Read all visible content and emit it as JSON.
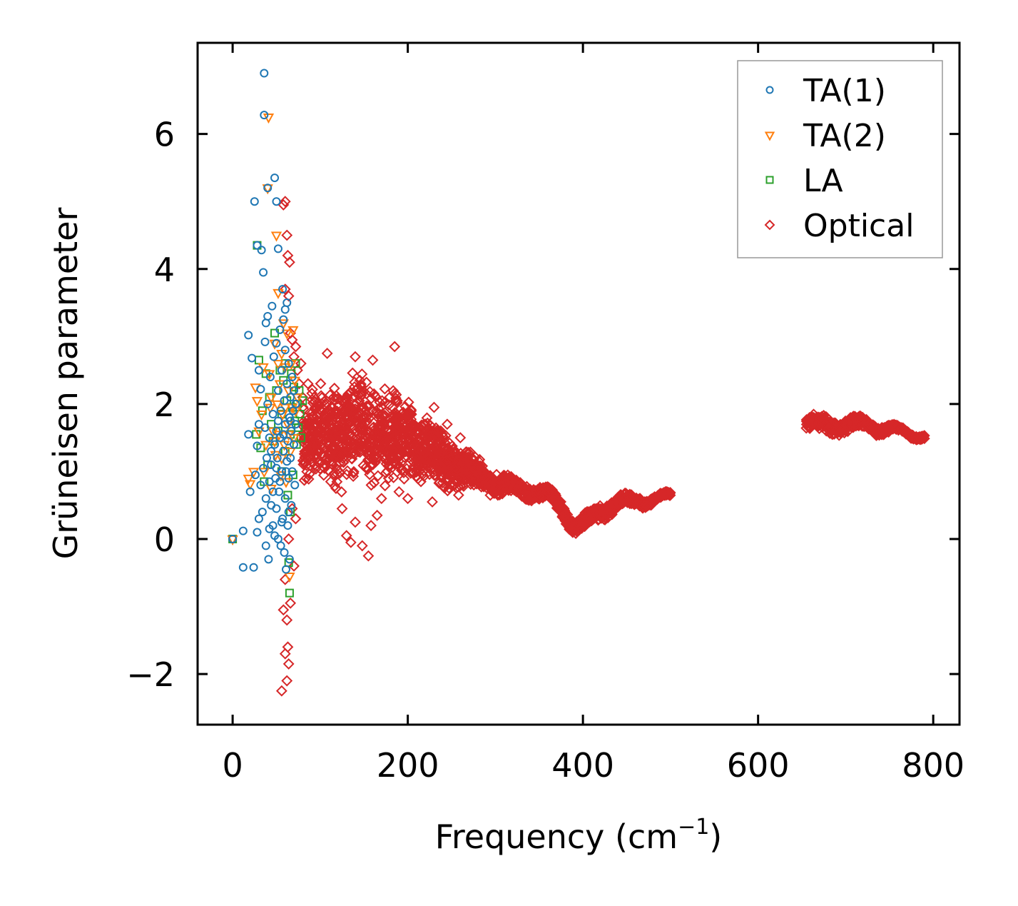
{
  "chart_data": {
    "type": "scatter",
    "title": "",
    "xlabel": "Frequency (cm",
    "xlabel_sup": "−1",
    "xlabel_end": ")",
    "ylabel": "Grüneisen parameter",
    "xlim": [
      -40,
      830
    ],
    "ylim": [
      -2.75,
      7.35
    ],
    "xticks": [
      0,
      200,
      400,
      600,
      800
    ],
    "xtick_labels": [
      "0",
      "200",
      "400",
      "600",
      "800"
    ],
    "yticks": [
      -2,
      0,
      2,
      4,
      6
    ],
    "ytick_labels": [
      "−2",
      "0",
      "2",
      "4",
      "6"
    ],
    "grid": false,
    "legend_position": "top-right",
    "series": [
      {
        "name": "TA(1)",
        "marker": "circle",
        "color": "#1f77b4",
        "points": [
          [
            0,
            0.0
          ],
          [
            12,
            0.12
          ],
          [
            12,
            -0.42
          ],
          [
            18,
            1.55
          ],
          [
            18,
            3.02
          ],
          [
            20,
            0.7
          ],
          [
            22,
            2.68
          ],
          [
            24,
            -0.42
          ],
          [
            25,
            5.0
          ],
          [
            26,
            0.95
          ],
          [
            28,
            0.1
          ],
          [
            28,
            1.38
          ],
          [
            28,
            4.35
          ],
          [
            30,
            0.3
          ],
          [
            30,
            1.7
          ],
          [
            30,
            2.5
          ],
          [
            32,
            0.8
          ],
          [
            32,
            2.22
          ],
          [
            33,
            4.28
          ],
          [
            34,
            0.4
          ],
          [
            35,
            1.05
          ],
          [
            35,
            3.95
          ],
          [
            36,
            6.9
          ],
          [
            36,
            6.28
          ],
          [
            37,
            1.65
          ],
          [
            37,
            2.92
          ],
          [
            38,
            -0.1
          ],
          [
            38,
            0.6
          ],
          [
            38,
            3.2
          ],
          [
            39,
            1.2
          ],
          [
            40,
            2.0
          ],
          [
            40,
            3.3
          ],
          [
            40,
            5.2
          ],
          [
            41,
            -0.3
          ],
          [
            42,
            0.15
          ],
          [
            42,
            0.85
          ],
          [
            42,
            1.5
          ],
          [
            43,
            2.4
          ],
          [
            44,
            0.5
          ],
          [
            44,
            1.1
          ],
          [
            45,
            3.45
          ],
          [
            46,
            0.2
          ],
          [
            46,
            1.85
          ],
          [
            47,
            2.7
          ],
          [
            48,
            0.05
          ],
          [
            48,
            1.4
          ],
          [
            48,
            5.35
          ],
          [
            49,
            0.9
          ],
          [
            50,
            0.45
          ],
          [
            50,
            1.6
          ],
          [
            50,
            2.9
          ],
          [
            50,
            5.0
          ],
          [
            51,
            1.2
          ],
          [
            52,
            0.0
          ],
          [
            52,
            2.2
          ],
          [
            52,
            4.3
          ],
          [
            53,
            0.7
          ],
          [
            54,
            1.5
          ],
          [
            54,
            3.1
          ],
          [
            55,
            -0.1
          ],
          [
            55,
            1.9
          ],
          [
            56,
            1.0
          ],
          [
            56,
            2.5
          ],
          [
            57,
            0.3
          ],
          [
            57,
            3.7
          ],
          [
            58,
            1.3
          ],
          [
            58,
            3.25
          ],
          [
            59,
            -0.2
          ],
          [
            59,
            2.05
          ],
          [
            60,
            0.6
          ],
          [
            60,
            1.7
          ],
          [
            60,
            3.4
          ],
          [
            61,
            -0.45
          ],
          [
            61,
            1.0
          ],
          [
            62,
            2.3
          ],
          [
            62,
            3.5
          ],
          [
            63,
            0.2
          ],
          [
            63,
            1.45
          ],
          [
            64,
            2.6
          ],
          [
            64,
            0.9
          ],
          [
            65,
            1.8
          ],
          [
            65,
            -0.3
          ],
          [
            66,
            1.2
          ],
          [
            66,
            2.1
          ],
          [
            67,
            0.5
          ],
          [
            67,
            1.6
          ],
          [
            68,
            2.4
          ],
          [
            68,
            1.0
          ],
          [
            69,
            1.9
          ],
          [
            70,
            1.4
          ],
          [
            70,
            2.2
          ],
          [
            71,
            0.8
          ],
          [
            72,
            1.7
          ],
          [
            72,
            2.0
          ],
          [
            44,
            1.3
          ],
          [
            46,
            0.7
          ],
          [
            50,
            1.05
          ],
          [
            54,
            0.85
          ],
          [
            58,
            1.55
          ],
          [
            62,
            1.15
          ],
          [
            66,
            1.75
          ],
          [
            64,
            0.4
          ],
          [
            56,
            0.25
          ],
          [
            60,
            2.8
          ],
          [
            52,
            1.75
          ]
        ]
      },
      {
        "name": "TA(2)",
        "marker": "triangle",
        "color": "#ff7f0e",
        "points": [
          [
            0,
            0.0
          ],
          [
            18,
            0.9
          ],
          [
            20,
            0.82
          ],
          [
            24,
            1.0
          ],
          [
            26,
            2.25
          ],
          [
            28,
            2.05
          ],
          [
            30,
            1.6
          ],
          [
            33,
            1.85
          ],
          [
            35,
            2.55
          ],
          [
            36,
            1.0
          ],
          [
            38,
            1.4
          ],
          [
            40,
            5.2
          ],
          [
            41,
            6.25
          ],
          [
            42,
            2.45
          ],
          [
            43,
            1.95
          ],
          [
            44,
            0.75
          ],
          [
            46,
            1.6
          ],
          [
            48,
            2.9
          ],
          [
            49,
            1.25
          ],
          [
            50,
            4.5
          ],
          [
            51,
            2.0
          ],
          [
            52,
            3.65
          ],
          [
            53,
            1.55
          ],
          [
            54,
            2.3
          ],
          [
            55,
            0.95
          ],
          [
            56,
            2.75
          ],
          [
            57,
            1.85
          ],
          [
            58,
            3.2
          ],
          [
            59,
            1.4
          ],
          [
            60,
            2.55
          ],
          [
            61,
            0.85
          ],
          [
            62,
            3.05
          ],
          [
            63,
            1.7
          ],
          [
            64,
            2.2
          ],
          [
            65,
            -0.55
          ],
          [
            66,
            1.3
          ],
          [
            67,
            2.6
          ],
          [
            68,
            1.95
          ],
          [
            69,
            3.1
          ],
          [
            70,
            1.5
          ],
          [
            71,
            2.35
          ],
          [
            72,
            1.9
          ],
          [
            74,
            2.1
          ],
          [
            44,
            2.1
          ],
          [
            48,
            1.45
          ],
          [
            52,
            2.6
          ],
          [
            56,
            1.2
          ],
          [
            60,
            1.95
          ],
          [
            64,
            1.55
          ]
        ]
      },
      {
        "name": "LA",
        "marker": "square",
        "color": "#2ca02c",
        "points": [
          [
            0,
            0.0
          ],
          [
            27,
            1.55
          ],
          [
            28,
            4.35
          ],
          [
            30,
            2.65
          ],
          [
            32,
            1.35
          ],
          [
            34,
            1.9
          ],
          [
            36,
            0.85
          ],
          [
            38,
            2.45
          ],
          [
            40,
            1.1
          ],
          [
            42,
            2.1
          ],
          [
            44,
            1.7
          ],
          [
            46,
            1.45
          ],
          [
            48,
            3.05
          ],
          [
            50,
            2.2
          ],
          [
            52,
            1.6
          ],
          [
            54,
            2.5
          ],
          [
            56,
            1.85
          ],
          [
            58,
            2.35
          ],
          [
            60,
            1.3
          ],
          [
            62,
            2.05
          ],
          [
            63,
            0.65
          ],
          [
            64,
            -0.35
          ],
          [
            65,
            -0.8
          ],
          [
            66,
            1.55
          ],
          [
            67,
            2.45
          ],
          [
            68,
            1.95
          ],
          [
            69,
            0.95
          ],
          [
            70,
            2.25
          ],
          [
            71,
            1.75
          ],
          [
            72,
            2.6
          ],
          [
            73,
            1.4
          ],
          [
            74,
            2.0
          ],
          [
            75,
            1.65
          ],
          [
            76,
            2.2
          ],
          [
            77,
            1.85
          ],
          [
            78,
            1.5
          ],
          [
            80,
            2.05
          ],
          [
            56,
            1.0
          ],
          [
            60,
            2.6
          ],
          [
            66,
            0.4
          ]
        ]
      },
      {
        "name": "Optical",
        "marker": "diamond",
        "color": "#d62728",
        "points": [
          [
            56,
            -2.25
          ],
          [
            62,
            -2.1
          ],
          [
            60,
            -1.7
          ],
          [
            63,
            -1.6
          ],
          [
            64,
            -1.85
          ],
          [
            62,
            -1.2
          ],
          [
            58,
            -1.05
          ],
          [
            66,
            -0.95
          ],
          [
            70,
            -0.4
          ],
          [
            60,
            -0.6
          ],
          [
            64,
            0.0
          ],
          [
            68,
            0.45
          ],
          [
            72,
            0.3
          ],
          [
            58,
            4.95
          ],
          [
            60,
            5.0
          ],
          [
            62,
            4.5
          ],
          [
            63,
            4.2
          ],
          [
            65,
            4.1
          ],
          [
            60,
            3.7
          ],
          [
            64,
            3.6
          ],
          [
            66,
            3.05
          ],
          [
            68,
            2.95
          ],
          [
            70,
            2.7
          ],
          [
            72,
            2.85
          ],
          [
            74,
            2.5
          ],
          [
            76,
            2.3
          ],
          [
            78,
            2.6
          ],
          [
            80,
            2.1
          ],
          [
            82,
            1.5
          ],
          [
            84,
            0.9
          ],
          [
            86,
            2.3
          ],
          [
            88,
            1.2
          ],
          [
            108,
            2.75
          ],
          [
            112,
            0.85
          ],
          [
            118,
            0.75
          ],
          [
            125,
            0.45
          ],
          [
            130,
            0.05
          ],
          [
            135,
            -0.05
          ],
          [
            140,
            0.25
          ],
          [
            148,
            -0.1
          ],
          [
            155,
            -0.25
          ],
          [
            158,
            0.2
          ],
          [
            165,
            0.35
          ],
          [
            170,
            0.6
          ],
          [
            178,
            0.9
          ],
          [
            185,
            2.85
          ],
          [
            190,
            0.7
          ],
          [
            200,
            0.6
          ],
          [
            215,
            0.85
          ],
          [
            228,
            0.55
          ],
          [
            245,
            0.9
          ],
          [
            258,
            0.65
          ],
          [
            265,
            1.2
          ],
          [
            140,
            2.7
          ],
          [
            160,
            2.65
          ],
          [
            230,
            1.95
          ],
          [
            245,
            1.7
          ],
          [
            260,
            1.5
          ]
        ],
        "band_center": [
          [
            80,
            1.5
          ],
          [
            100,
            1.6
          ],
          [
            120,
            1.55
          ],
          [
            140,
            1.6
          ],
          [
            160,
            1.6
          ],
          [
            180,
            1.5
          ],
          [
            200,
            1.45
          ],
          [
            220,
            1.35
          ],
          [
            240,
            1.2
          ],
          [
            260,
            1.05
          ],
          [
            280,
            0.95
          ],
          [
            300,
            0.85
          ],
          [
            320,
            0.75
          ],
          [
            340,
            0.72
          ],
          [
            360,
            0.65
          ],
          [
            375,
            0.45
          ],
          [
            390,
            0.2
          ],
          [
            405,
            0.25
          ],
          [
            420,
            0.4
          ],
          [
            440,
            0.55
          ],
          [
            460,
            0.55
          ],
          [
            480,
            0.6
          ],
          [
            500,
            0.62
          ]
        ],
        "band_halfwidth": [
          [
            80,
            0.75
          ],
          [
            100,
            0.8
          ],
          [
            120,
            0.85
          ],
          [
            140,
            0.9
          ],
          [
            160,
            0.85
          ],
          [
            180,
            0.75
          ],
          [
            200,
            0.65
          ],
          [
            220,
            0.55
          ],
          [
            240,
            0.5
          ],
          [
            260,
            0.35
          ],
          [
            280,
            0.22
          ],
          [
            300,
            0.18
          ],
          [
            320,
            0.12
          ],
          [
            340,
            0.1
          ],
          [
            360,
            0.1
          ],
          [
            375,
            0.12
          ],
          [
            390,
            0.1
          ],
          [
            405,
            0.12
          ],
          [
            420,
            0.12
          ],
          [
            440,
            0.1
          ],
          [
            460,
            0.08
          ],
          [
            480,
            0.05
          ],
          [
            500,
            0.03
          ]
        ],
        "band2_center": [
          [
            655,
            1.75
          ],
          [
            670,
            1.68
          ],
          [
            690,
            1.68
          ],
          [
            710,
            1.7
          ],
          [
            730,
            1.68
          ],
          [
            750,
            1.62
          ],
          [
            770,
            1.57
          ],
          [
            790,
            1.53
          ]
        ],
        "band2_halfwidth": [
          [
            655,
            0.1
          ],
          [
            670,
            0.12
          ],
          [
            690,
            0.12
          ],
          [
            710,
            0.1
          ],
          [
            730,
            0.08
          ],
          [
            750,
            0.06
          ],
          [
            770,
            0.04
          ],
          [
            790,
            0.03
          ]
        ]
      }
    ],
    "legend": [
      {
        "name": "TA(1)",
        "marker": "circle",
        "color": "#1f77b4"
      },
      {
        "name": "TA(2)",
        "marker": "triangle",
        "color": "#ff7f0e"
      },
      {
        "name": "LA",
        "marker": "square",
        "color": "#2ca02c"
      },
      {
        "name": "Optical",
        "marker": "diamond",
        "color": "#d62728"
      }
    ]
  }
}
